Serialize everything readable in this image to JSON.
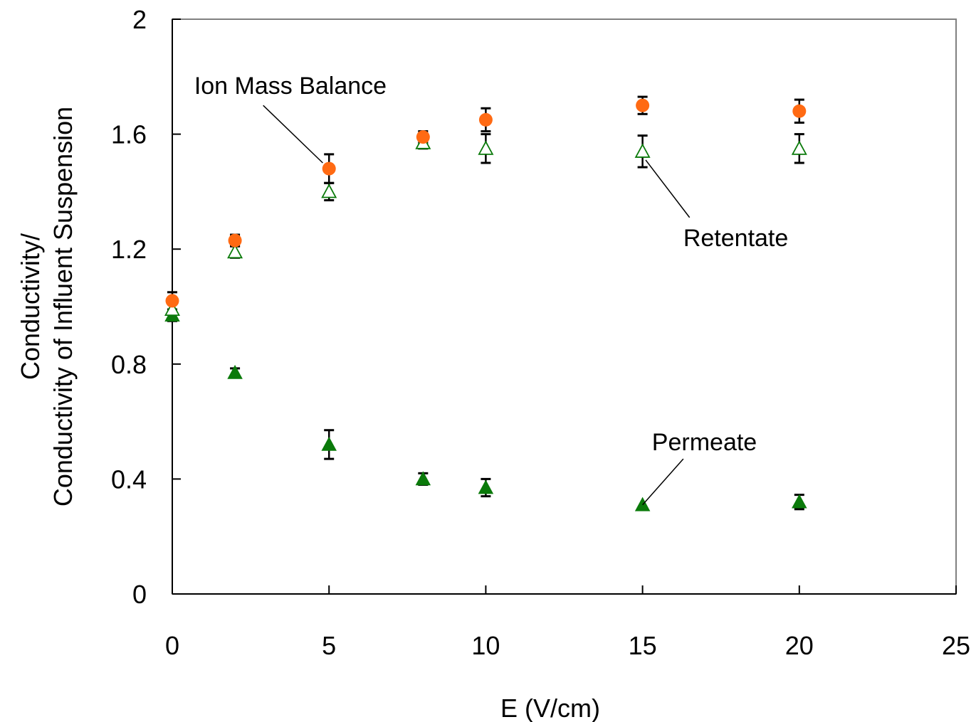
{
  "chart_data": {
    "type": "scatter",
    "title": "",
    "xlabel": "E (V/cm)",
    "ylabel_lines": [
      "Conductivity/",
      "Conductivity of Influent Suspension"
    ],
    "xlim": [
      0,
      25
    ],
    "ylim": [
      0,
      2
    ],
    "x_ticks": [
      "0",
      "5",
      "10",
      "15",
      "20",
      "25"
    ],
    "y_ticks": [
      "0",
      "0.4",
      "0.8",
      "1.2",
      "1.6",
      "2"
    ],
    "grid": false,
    "legend": "none",
    "series": [
      {
        "name": "Ion Mass Balance",
        "marker": "circle",
        "color": "#ff6a13",
        "x": [
          0,
          2,
          5,
          8,
          10,
          15,
          20
        ],
        "y": [
          1.02,
          1.23,
          1.48,
          1.59,
          1.65,
          1.7,
          1.68
        ],
        "err": [
          0.03,
          0.02,
          0.05,
          0.02,
          0.04,
          0.03,
          0.04
        ]
      },
      {
        "name": "Retentate",
        "marker": "triangle-open",
        "color": "#0a7a0a",
        "x": [
          0,
          2,
          5,
          8,
          10,
          15,
          20
        ],
        "y": [
          0.99,
          1.19,
          1.4,
          1.57,
          1.55,
          1.54,
          1.55
        ],
        "err": [
          0.04,
          0.02,
          0.03,
          0.02,
          0.05,
          0.055,
          0.05
        ]
      },
      {
        "name": "Permeate",
        "marker": "triangle-filled",
        "color": "#0a7a0a",
        "x": [
          0,
          2,
          5,
          8,
          10,
          15,
          20
        ],
        "y": [
          0.97,
          0.77,
          0.52,
          0.4,
          0.37,
          0.31,
          0.32
        ],
        "err": [
          0.02,
          0.015,
          0.05,
          0.02,
          0.03,
          0.0,
          0.025
        ]
      }
    ],
    "annotations": [
      {
        "text": "Ion Mass Balance",
        "text_x": 0.7,
        "text_y": 1.77,
        "point_x": 4.8,
        "point_y": 1.5,
        "line_from_x": 2.9,
        "line_from_y": 1.7
      },
      {
        "text": "Retentate",
        "text_x": 16.3,
        "text_y": 1.24,
        "point_x": 15.1,
        "point_y": 1.51,
        "line_from_x": 16.5,
        "line_from_y": 1.31
      },
      {
        "text": "Permeate",
        "text_x": 15.3,
        "text_y": 0.53,
        "point_x": 15.0,
        "point_y": 0.31,
        "line_from_x": 16.3,
        "line_from_y": 0.47
      }
    ]
  }
}
